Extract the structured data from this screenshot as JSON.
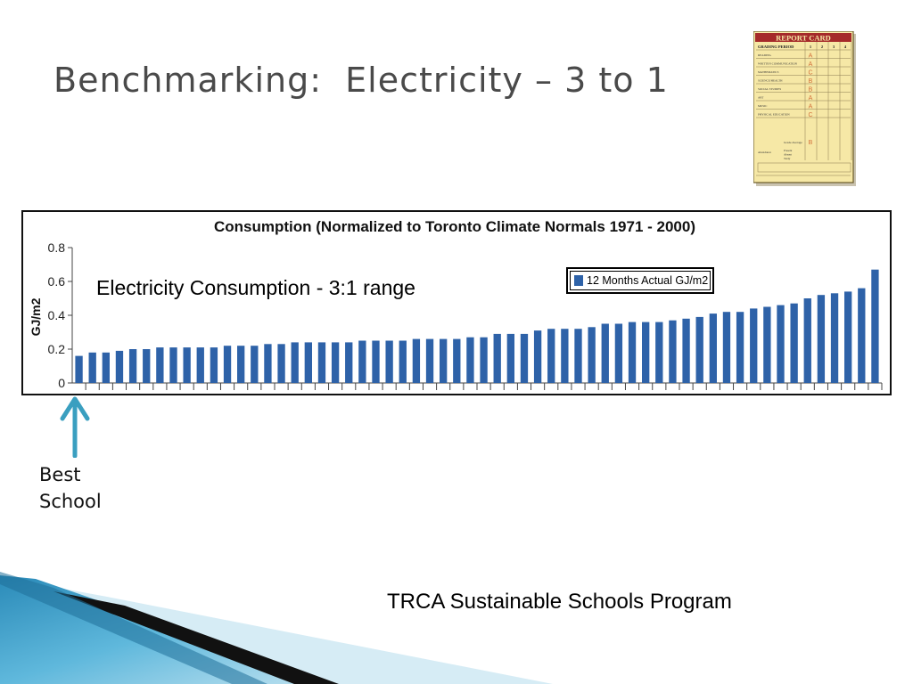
{
  "slide": {
    "title": "Benchmarking:  Electricity – 3 to 1",
    "annotation": "Electricity Consumption - 3:1 range",
    "best_label_line1": "Best",
    "best_label_line2": "School",
    "footer": "TRCA Sustainable Schools Program"
  },
  "report_card": {
    "title": "REPORT CARD",
    "header": "GRADING PERIOD",
    "periods": [
      "1",
      "2",
      "3",
      "4"
    ],
    "subjects": [
      "READING",
      "WRITTEN COMMUNICATION",
      "MATHEMATICS",
      "SCIENCE/HEALTH",
      "SOCIAL STUDIES",
      "ART",
      "MUSIC",
      "PHYSICAL EDUCATION"
    ],
    "grades": [
      "A",
      "A",
      "C",
      "B",
      "B",
      "A",
      "A",
      "C"
    ],
    "grade_average_label": "Grade Average",
    "grade_average": "B",
    "attendance_label": "Attendance",
    "attendance_rows": [
      "Present",
      "Absent",
      "Tardy"
    ]
  },
  "colors": {
    "bar": "#2e62a8",
    "title_text": "#4a4a4a",
    "arrow": "#3a9fc0",
    "report_card_bg": "#f6e8a6",
    "report_card_header": "#a52a2a"
  },
  "chart_data": {
    "type": "bar",
    "title": "Consumption (Normalized to Toronto Climate Normals 1971 - 2000)",
    "ylabel": "GJ/m2",
    "xlabel": "",
    "ylim": [
      0,
      0.8
    ],
    "yticks": [
      "0",
      "0.2",
      "0.4",
      "0.6",
      "0.8"
    ],
    "grid": false,
    "legend_position": "top-right",
    "series": [
      {
        "name": "12 Months Actual GJ/m2",
        "values": [
          0.16,
          0.18,
          0.18,
          0.19,
          0.2,
          0.2,
          0.21,
          0.21,
          0.21,
          0.21,
          0.21,
          0.22,
          0.22,
          0.22,
          0.23,
          0.23,
          0.24,
          0.24,
          0.24,
          0.24,
          0.24,
          0.25,
          0.25,
          0.25,
          0.25,
          0.26,
          0.26,
          0.26,
          0.26,
          0.27,
          0.27,
          0.29,
          0.29,
          0.29,
          0.31,
          0.32,
          0.32,
          0.32,
          0.33,
          0.35,
          0.35,
          0.36,
          0.36,
          0.36,
          0.37,
          0.38,
          0.39,
          0.41,
          0.42,
          0.42,
          0.44,
          0.45,
          0.46,
          0.47,
          0.5,
          0.52,
          0.53,
          0.54,
          0.56,
          0.67
        ]
      }
    ]
  }
}
